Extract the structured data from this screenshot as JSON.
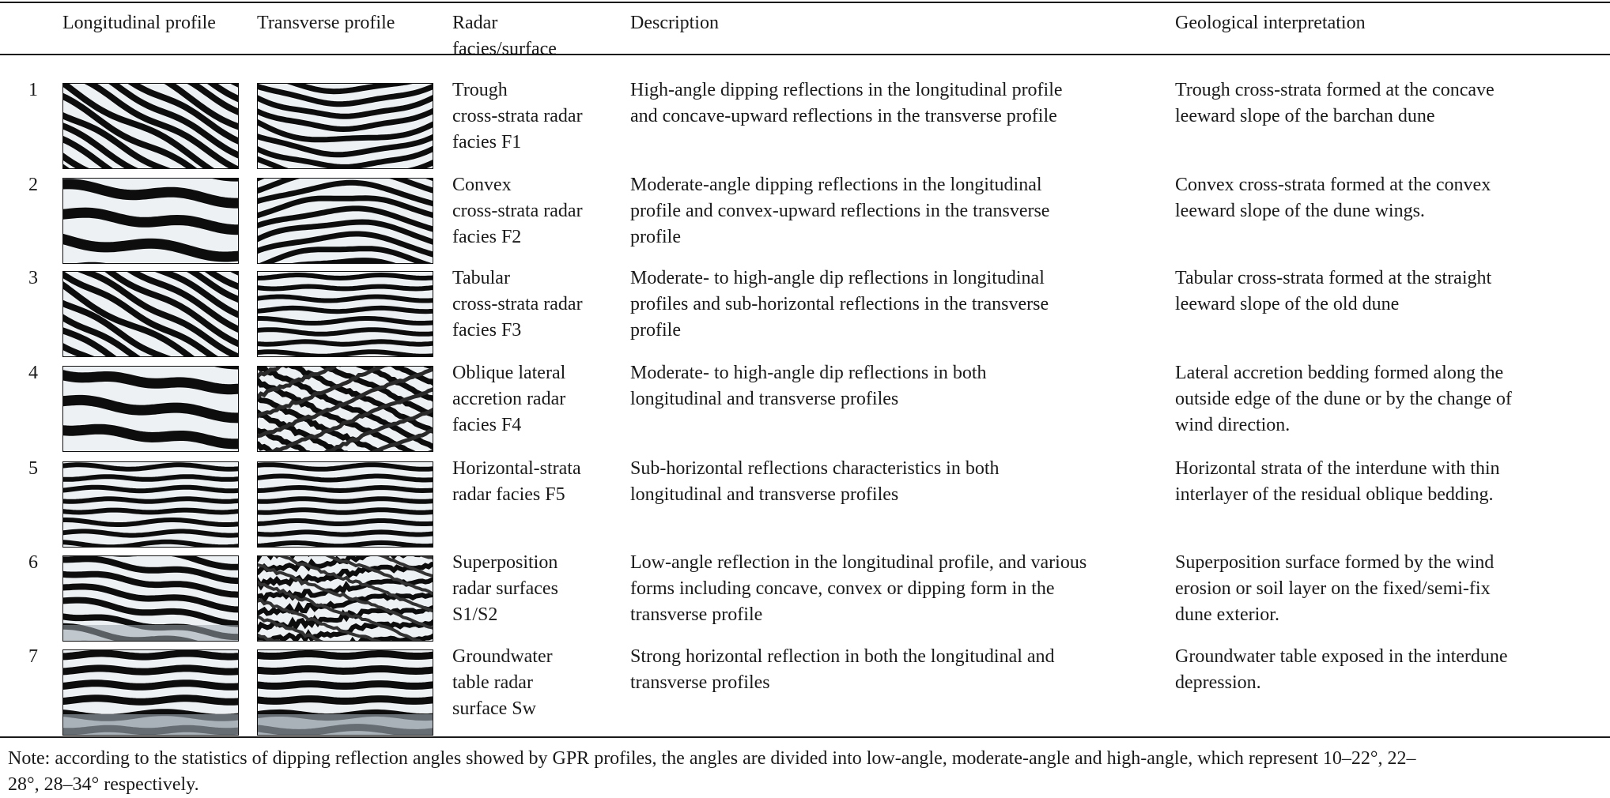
{
  "headers": {
    "longitudinal": "Longitudinal profile",
    "transverse": "Transverse profile",
    "facies_line1": "Radar",
    "facies_line2": "facies/surface",
    "description": "Description",
    "interpretation": "Geological interpretation"
  },
  "rows": [
    {
      "num": "1",
      "facies": [
        "Trough",
        "cross-strata radar",
        "facies F1"
      ],
      "description": [
        "High-angle dipping reflections in the longitudinal profile",
        "and concave-upward reflections in the transverse profile"
      ],
      "interpretation": [
        "Trough cross-strata formed at the concave",
        "leeward slope of the barchan dune"
      ],
      "long_image": "high-angle dipping reflection bands",
      "trans_image": "concave-upward reflection bands"
    },
    {
      "num": "2",
      "facies": [
        "Convex",
        "cross-strata radar",
        "facies F2"
      ],
      "description": [
        "Moderate-angle dipping reflections in the longitudinal",
        "profile and convex-upward reflections in the transverse",
        "profile"
      ],
      "interpretation": [
        "Convex cross-strata formed at the convex",
        "leeward slope of the dune wings."
      ],
      "long_image": "moderate-angle dipping reflection bands",
      "trans_image": "convex-upward reflection bands"
    },
    {
      "num": "3",
      "facies": [
        "Tabular",
        "cross-strata radar",
        "facies F3"
      ],
      "description": [
        "Moderate- to high-angle dip reflections in longitudinal",
        "profiles and sub-horizontal reflections in the transverse",
        "profile"
      ],
      "interpretation": [
        "Tabular cross-strata formed at the straight",
        "leeward slope of the old dune"
      ],
      "long_image": "moderate to high-angle dipping reflection bands",
      "trans_image": "sub-horizontal reflection bands"
    },
    {
      "num": "4",
      "facies": [
        "Oblique lateral",
        "accretion radar",
        "facies F4"
      ],
      "description": [
        "Moderate- to high-angle dip reflections in both",
        "longitudinal and transverse profiles"
      ],
      "interpretation": [
        "Lateral accretion bedding formed along the",
        "outside edge of the dune or by the change of",
        "wind direction."
      ],
      "long_image": "gently dipping thick reflection bands",
      "trans_image": "crossing oblique reflection bands"
    },
    {
      "num": "5",
      "facies": [
        "Horizontal-strata",
        "radar facies F5"
      ],
      "description": [
        "Sub-horizontal reflections characteristics in both",
        "longitudinal and transverse profiles"
      ],
      "interpretation": [
        "Horizontal strata of the interdune with thin",
        "interlayer of the residual oblique bedding."
      ],
      "long_image": "sub-horizontal reflection bands",
      "trans_image": "sub-horizontal reflection bands"
    },
    {
      "num": "6",
      "facies": [
        "Superposition",
        "radar surfaces",
        "S1/S2"
      ],
      "description": [
        "Low-angle reflection in the longitudinal profile, and various",
        "forms including concave, convex or dipping form in the",
        "transverse profile"
      ],
      "interpretation": [
        "Superposition surface formed by the wind",
        "erosion or soil layer on the fixed/semi-fix",
        "dune exterior."
      ],
      "long_image": "low-angle reflection bands",
      "trans_image": "mixed dipping reflection bands"
    },
    {
      "num": "7",
      "facies": [
        "Groundwater",
        "table radar",
        "surface Sw"
      ],
      "description": [
        "Strong horizontal reflection in both the longitudinal and",
        "transverse profiles"
      ],
      "interpretation": [
        "Groundwater table exposed in the interdune",
        "depression."
      ],
      "long_image": "strong horizontal reflection bands",
      "trans_image": "strong horizontal reflection bands"
    }
  ],
  "note": [
    "Note: according to the statistics of dipping reflection angles showed by GPR profiles, the angles are divided into low-angle, moderate-angle and high-angle, which represent 10–22°, 22–",
    "28°, 28–34° respectively."
  ]
}
